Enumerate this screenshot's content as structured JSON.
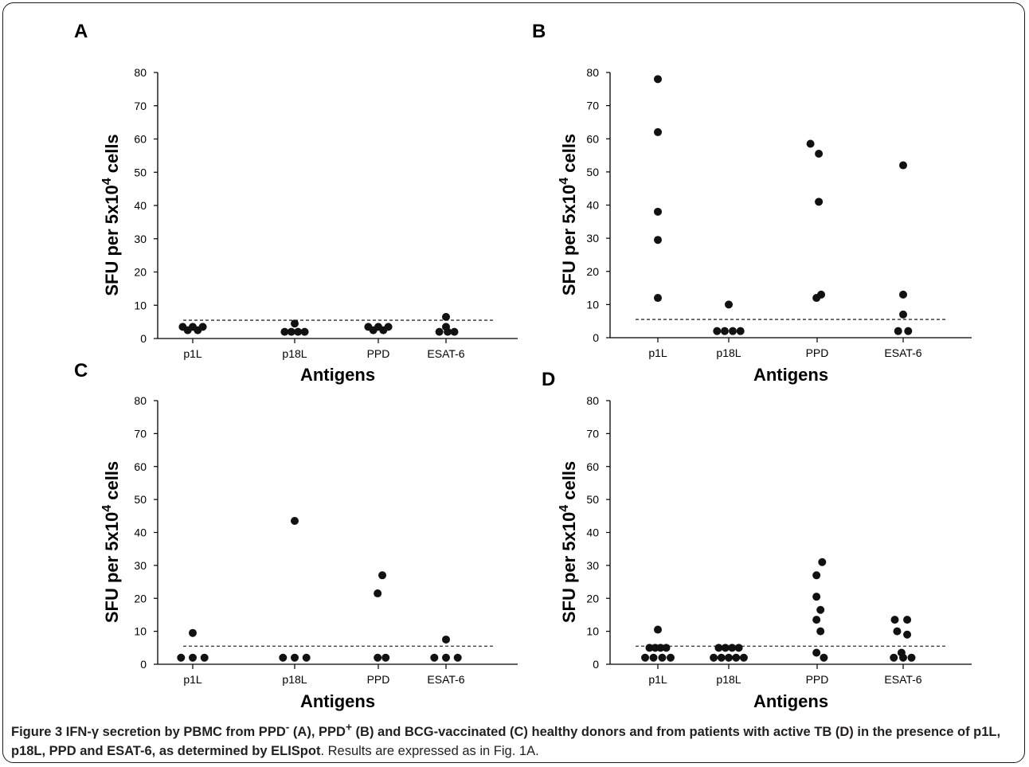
{
  "chart_data": [
    {
      "panel": "A",
      "type": "scatter",
      "categories": [
        "p1L",
        "p18L",
        "PPD",
        "ESAT-6"
      ],
      "xlabel": "Antigens",
      "ylabel_parts": [
        "SFU per 5x10",
        "4",
        " cells"
      ],
      "ylim": [
        0,
        80
      ],
      "yticks": [
        0,
        10,
        20,
        30,
        40,
        50,
        60,
        70,
        80
      ],
      "threshold": 5.5,
      "series": [
        {
          "category": "p1L",
          "points": [
            [
              -0.3,
              3.5
            ],
            [
              -0.15,
              2.5
            ],
            [
              0,
              3.5
            ],
            [
              0.15,
              2.5
            ],
            [
              0.3,
              3.5
            ]
          ]
        },
        {
          "category": "p18L",
          "points": [
            [
              -0.3,
              2
            ],
            [
              -0.1,
              2
            ],
            [
              0,
              4.5
            ],
            [
              0.1,
              2
            ],
            [
              0.3,
              2
            ]
          ]
        },
        {
          "category": "PPD",
          "points": [
            [
              -0.3,
              3.5
            ],
            [
              -0.15,
              2.5
            ],
            [
              0,
              3.5
            ],
            [
              0.15,
              2.5
            ],
            [
              0.3,
              3.5
            ]
          ]
        },
        {
          "category": "ESAT-6",
          "points": [
            [
              0,
              6.5
            ],
            [
              0,
              3.5
            ],
            [
              -0.2,
              2
            ],
            [
              0.05,
              2
            ],
            [
              0.25,
              2
            ]
          ]
        }
      ]
    },
    {
      "panel": "B",
      "type": "scatter",
      "categories": [
        "p1L",
        "p18L",
        "PPD",
        "ESAT-6"
      ],
      "xlabel": "Antigens",
      "ylabel_parts": [
        "SFU per 5x10",
        "4",
        " cells"
      ],
      "ylim": [
        0,
        80
      ],
      "yticks": [
        0,
        10,
        20,
        30,
        40,
        50,
        60,
        70,
        80
      ],
      "threshold": 5.5,
      "series": [
        {
          "category": "p1L",
          "points": [
            [
              0,
              78
            ],
            [
              0,
              62
            ],
            [
              0,
              38
            ],
            [
              0,
              29.5
            ],
            [
              0,
              12
            ]
          ]
        },
        {
          "category": "p18L",
          "points": [
            [
              0,
              10
            ],
            [
              -0.35,
              2
            ],
            [
              -0.12,
              2
            ],
            [
              0.12,
              2
            ],
            [
              0.35,
              2
            ]
          ]
        },
        {
          "category": "PPD",
          "points": [
            [
              -0.2,
              58.5
            ],
            [
              0.05,
              55.5
            ],
            [
              0.05,
              41
            ],
            [
              -0.02,
              12
            ],
            [
              0.12,
              13
            ]
          ]
        },
        {
          "category": "ESAT-6",
          "points": [
            [
              0,
              52
            ],
            [
              0,
              13
            ],
            [
              0,
              7
            ],
            [
              -0.15,
              2
            ],
            [
              0.15,
              2
            ]
          ]
        }
      ]
    },
    {
      "panel": "C",
      "type": "scatter",
      "categories": [
        "p1L",
        "p18L",
        "PPD",
        "ESAT-6"
      ],
      "xlabel": "Antigens",
      "ylabel_parts": [
        "SFU per 5x10",
        "4",
        " cells"
      ],
      "ylim": [
        0,
        80
      ],
      "yticks": [
        0,
        10,
        20,
        30,
        40,
        50,
        60,
        70,
        80
      ],
      "threshold": 5.5,
      "series": [
        {
          "category": "p1L",
          "points": [
            [
              0,
              9.5
            ],
            [
              -0.35,
              2
            ],
            [
              0,
              2
            ],
            [
              0.35,
              2
            ]
          ]
        },
        {
          "category": "p18L",
          "points": [
            [
              0,
              43.5
            ],
            [
              -0.35,
              2
            ],
            [
              0,
              2
            ],
            [
              0.35,
              2
            ]
          ]
        },
        {
          "category": "PPD",
          "points": [
            [
              0.12,
              27
            ],
            [
              -0.02,
              21.5
            ],
            [
              -0.02,
              2
            ],
            [
              0.22,
              2
            ]
          ]
        },
        {
          "category": "ESAT-6",
          "points": [
            [
              0,
              7.5
            ],
            [
              -0.35,
              2
            ],
            [
              0,
              2
            ],
            [
              0.35,
              2
            ]
          ]
        }
      ]
    },
    {
      "panel": "D",
      "type": "scatter",
      "categories": [
        "p1L",
        "p18L",
        "PPD",
        "ESAT-6"
      ],
      "xlabel": "Antigens",
      "ylabel_parts": [
        "SFU per 5x10",
        "4",
        " cells"
      ],
      "ylim": [
        0,
        80
      ],
      "yticks": [
        0,
        10,
        20,
        30,
        40,
        50,
        60,
        70,
        80
      ],
      "threshold": 5.5,
      "series": [
        {
          "category": "p1L",
          "points": [
            [
              0,
              10.5
            ],
            [
              -0.25,
              5
            ],
            [
              -0.08,
              5
            ],
            [
              0.08,
              5
            ],
            [
              0.25,
              5
            ],
            [
              -0.38,
              2
            ],
            [
              -0.13,
              2
            ],
            [
              0.13,
              2
            ],
            [
              0.38,
              2
            ]
          ]
        },
        {
          "category": "p18L",
          "points": [
            [
              -0.3,
              5
            ],
            [
              -0.1,
              5
            ],
            [
              0.1,
              5
            ],
            [
              0.3,
              5
            ],
            [
              -0.45,
              2
            ],
            [
              -0.22,
              2
            ],
            [
              0,
              2
            ],
            [
              0.22,
              2
            ],
            [
              0.45,
              2
            ]
          ]
        },
        {
          "category": "PPD",
          "points": [
            [
              0.15,
              31
            ],
            [
              -0.02,
              27
            ],
            [
              -0.02,
              20.5
            ],
            [
              0.1,
              16.5
            ],
            [
              -0.02,
              13.5
            ],
            [
              0.1,
              10
            ],
            [
              -0.02,
              3.5
            ],
            [
              0.2,
              2
            ]
          ]
        },
        {
          "category": "ESAT-6",
          "points": [
            [
              -0.25,
              13.5
            ],
            [
              0.12,
              13.5
            ],
            [
              -0.18,
              10
            ],
            [
              0.12,
              9
            ],
            [
              -0.05,
              3.5
            ],
            [
              -0.28,
              2
            ],
            [
              0,
              2
            ],
            [
              0.25,
              2
            ]
          ]
        }
      ]
    }
  ],
  "caption": {
    "bold_prefix": "Figure 3",
    "bold_text": " IFN-γ secretion by PBMC from PPD",
    "sup1": "-",
    "bold_text2": " (A), PPD",
    "sup2": "+",
    "bold_text3": " (B) and BCG-vaccinated (C) healthy donors and from patients with active TB (D) in the presence of p1L, p18L, PPD and ESAT-6, as determined by ELISpot",
    "normal_text": ". Results are expressed as in Fig. 1A."
  }
}
